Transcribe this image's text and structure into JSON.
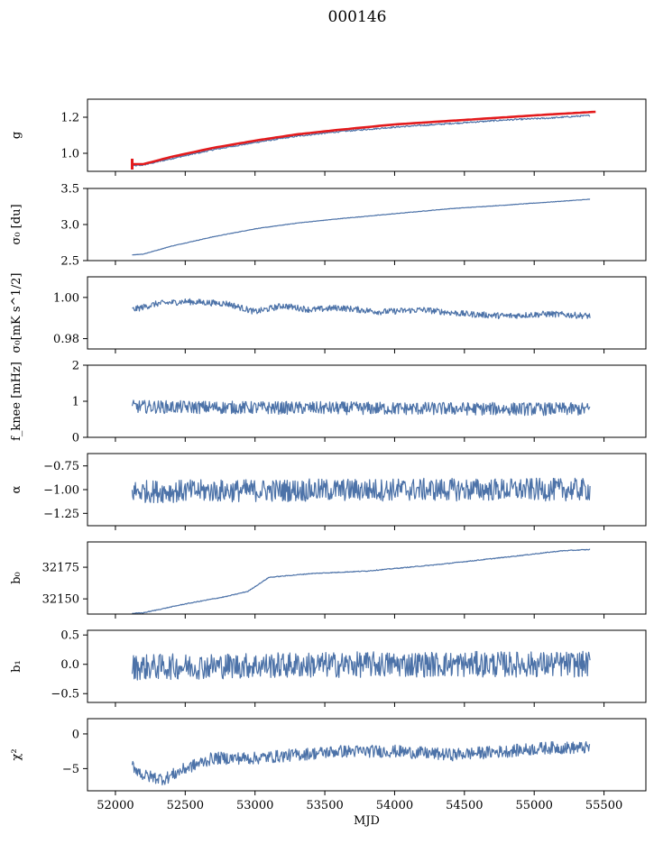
{
  "title": "000146",
  "chart_data": [
    {
      "type": "line",
      "ylabel": "g",
      "xlim": [
        51800,
        55800
      ],
      "ylim": [
        0.9,
        1.3
      ],
      "yticks": [
        1.0,
        1.2
      ],
      "yticklabels": [
        "1.0",
        "1.2"
      ],
      "grid": false,
      "series": [
        {
          "color": "#4c72a8",
          "x": [
            52120,
            52200,
            52400,
            52700,
            53000,
            53300,
            53600,
            54000,
            54400,
            54800,
            55100,
            55400
          ],
          "y": [
            0.93,
            0.935,
            0.97,
            1.02,
            1.06,
            1.095,
            1.12,
            1.145,
            1.165,
            1.185,
            1.195,
            1.21
          ],
          "style": "noise",
          "amp": 0.004
        },
        {
          "color": "#e31a1c",
          "x": [
            52120,
            52200,
            52400,
            52700,
            53000,
            53300,
            53600,
            54000,
            54400,
            54800,
            55100,
            55440
          ],
          "y": [
            0.94,
            0.94,
            0.98,
            1.03,
            1.07,
            1.105,
            1.13,
            1.16,
            1.18,
            1.2,
            1.215,
            1.23
          ],
          "style": "thick",
          "error_bar": {
            "x": 52120,
            "y": 0.94,
            "err": 0.03
          }
        }
      ]
    },
    {
      "type": "line",
      "ylabel": "σ₀ [du]",
      "xlim": [
        51800,
        55800
      ],
      "ylim": [
        2.5,
        3.5
      ],
      "yticks": [
        2.5,
        3.0,
        3.5
      ],
      "yticklabels": [
        "2.5",
        "3.0",
        "3.5"
      ],
      "grid": false,
      "series": [
        {
          "color": "#4c72a8",
          "x": [
            52120,
            52200,
            52400,
            52700,
            53000,
            53300,
            53600,
            54000,
            54400,
            54800,
            55100,
            55400
          ],
          "y": [
            2.58,
            2.59,
            2.7,
            2.83,
            2.94,
            3.02,
            3.08,
            3.15,
            3.22,
            3.27,
            3.31,
            3.35
          ],
          "style": "noise",
          "amp": 0.003
        }
      ]
    },
    {
      "type": "line",
      "ylabel": "σ₀[mK s^1/2]",
      "xlim": [
        51800,
        55800
      ],
      "ylim": [
        0.975,
        1.01
      ],
      "yticks": [
        0.98,
        1.0
      ],
      "yticklabels": [
        "0.98",
        "1.00"
      ],
      "grid": false,
      "series": [
        {
          "color": "#4c72a8",
          "x": [
            52120,
            52300,
            52500,
            52800,
            53000,
            53200,
            53400,
            53600,
            53900,
            54200,
            54500,
            54800,
            55100,
            55400
          ],
          "y": [
            0.994,
            0.997,
            0.998,
            0.997,
            0.993,
            0.996,
            0.994,
            0.995,
            0.993,
            0.994,
            0.992,
            0.991,
            0.992,
            0.991
          ],
          "style": "noise",
          "amp": 0.0015
        }
      ]
    },
    {
      "type": "line",
      "ylabel": "f_knee [mHz]",
      "xlim": [
        51800,
        55800
      ],
      "ylim": [
        0,
        2
      ],
      "yticks": [
        0,
        1,
        2
      ],
      "yticklabels": [
        "0",
        "1",
        "2"
      ],
      "grid": false,
      "series": [
        {
          "color": "#4c72a8",
          "x": [
            52120,
            53000,
            54000,
            55400
          ],
          "y": [
            0.85,
            0.82,
            0.8,
            0.78
          ],
          "style": "noise",
          "amp": 0.18
        }
      ]
    },
    {
      "type": "line",
      "ylabel": "α",
      "xlim": [
        51800,
        55800
      ],
      "ylim": [
        -1.38,
        -0.62
      ],
      "yticks": [
        -1.25,
        -1.0,
        -0.75
      ],
      "yticklabels": [
        "−1.25",
        "−1.00",
        "−0.75"
      ],
      "grid": false,
      "series": [
        {
          "color": "#4c72a8",
          "x": [
            52120,
            53000,
            54000,
            55400
          ],
          "y": [
            -1.02,
            -1.01,
            -1.0,
            -1.0
          ],
          "style": "noise",
          "amp": 0.12
        }
      ]
    },
    {
      "type": "line",
      "ylabel": "b₀",
      "xlim": [
        51800,
        55800
      ],
      "ylim": [
        32138,
        32195
      ],
      "yticks": [
        32150,
        32175
      ],
      "yticklabels": [
        "32150",
        "32175"
      ],
      "grid": false,
      "series": [
        {
          "color": "#4c72a8",
          "x": [
            52120,
            52200,
            52500,
            52800,
            52950,
            53100,
            53400,
            53800,
            54300,
            54800,
            55200,
            55400
          ],
          "y": [
            32138.5,
            32139,
            32146,
            32152,
            32156,
            32167,
            32170,
            32172,
            32177,
            32183,
            32188,
            32189
          ],
          "style": "noise",
          "amp": 0.3
        }
      ]
    },
    {
      "type": "line",
      "ylabel": "b₁",
      "xlim": [
        51800,
        55800
      ],
      "ylim": [
        -0.65,
        0.58
      ],
      "yticks": [
        -0.5,
        0.0,
        0.5
      ],
      "yticklabels": [
        "−0.5",
        "0.0",
        "0.5"
      ],
      "grid": false,
      "series": [
        {
          "color": "#4c72a8",
          "x": [
            52120,
            53000,
            54000,
            55400
          ],
          "y": [
            -0.05,
            -0.02,
            0.0,
            0.0
          ],
          "style": "noise",
          "amp": 0.22
        }
      ]
    },
    {
      "type": "line",
      "ylabel": "χ²",
      "xlim": [
        51800,
        55800
      ],
      "ylim": [
        -8.2,
        2.2
      ],
      "yticks": [
        -5,
        0
      ],
      "yticklabels": [
        "−5",
        "0"
      ],
      "xticks": [
        52000,
        52500,
        53000,
        53500,
        54000,
        54500,
        55000,
        55500
      ],
      "xticklabels": [
        "52000",
        "52500",
        "53000",
        "53500",
        "54000",
        "54500",
        "55000",
        "55500"
      ],
      "xlabel": "MJD",
      "grid": false,
      "series": [
        {
          "color": "#4c72a8",
          "x": [
            52120,
            52200,
            52350,
            52500,
            52700,
            53000,
            53300,
            53600,
            54000,
            54400,
            54800,
            55100,
            55400
          ],
          "y": [
            -4.5,
            -6,
            -6.5,
            -5,
            -3.5,
            -3.5,
            -3,
            -2.5,
            -2.5,
            -3,
            -2.5,
            -2,
            -2
          ],
          "style": "noise",
          "amp": 0.9
        }
      ]
    }
  ]
}
